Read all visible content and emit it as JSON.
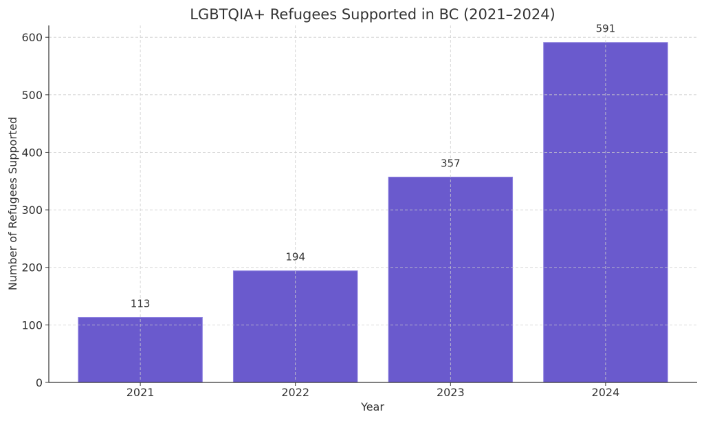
{
  "chart_data": {
    "type": "bar",
    "title": "LGBTQIA+ Refugees Supported in BC (2021–2024)",
    "xlabel": "Year",
    "ylabel": "Number of Refugees Supported",
    "categories": [
      "2021",
      "2022",
      "2023",
      "2024"
    ],
    "values": [
      113,
      194,
      357,
      591
    ],
    "data_labels": [
      "113",
      "194",
      "357",
      "591"
    ],
    "ylim": [
      0,
      620.55
    ],
    "yticks": [
      0,
      100,
      200,
      300,
      400,
      500,
      600
    ],
    "ytick_labels": [
      "0",
      "100",
      "200",
      "300",
      "400",
      "500",
      "600"
    ],
    "grid": true,
    "bar_color": "#6a5acd"
  }
}
